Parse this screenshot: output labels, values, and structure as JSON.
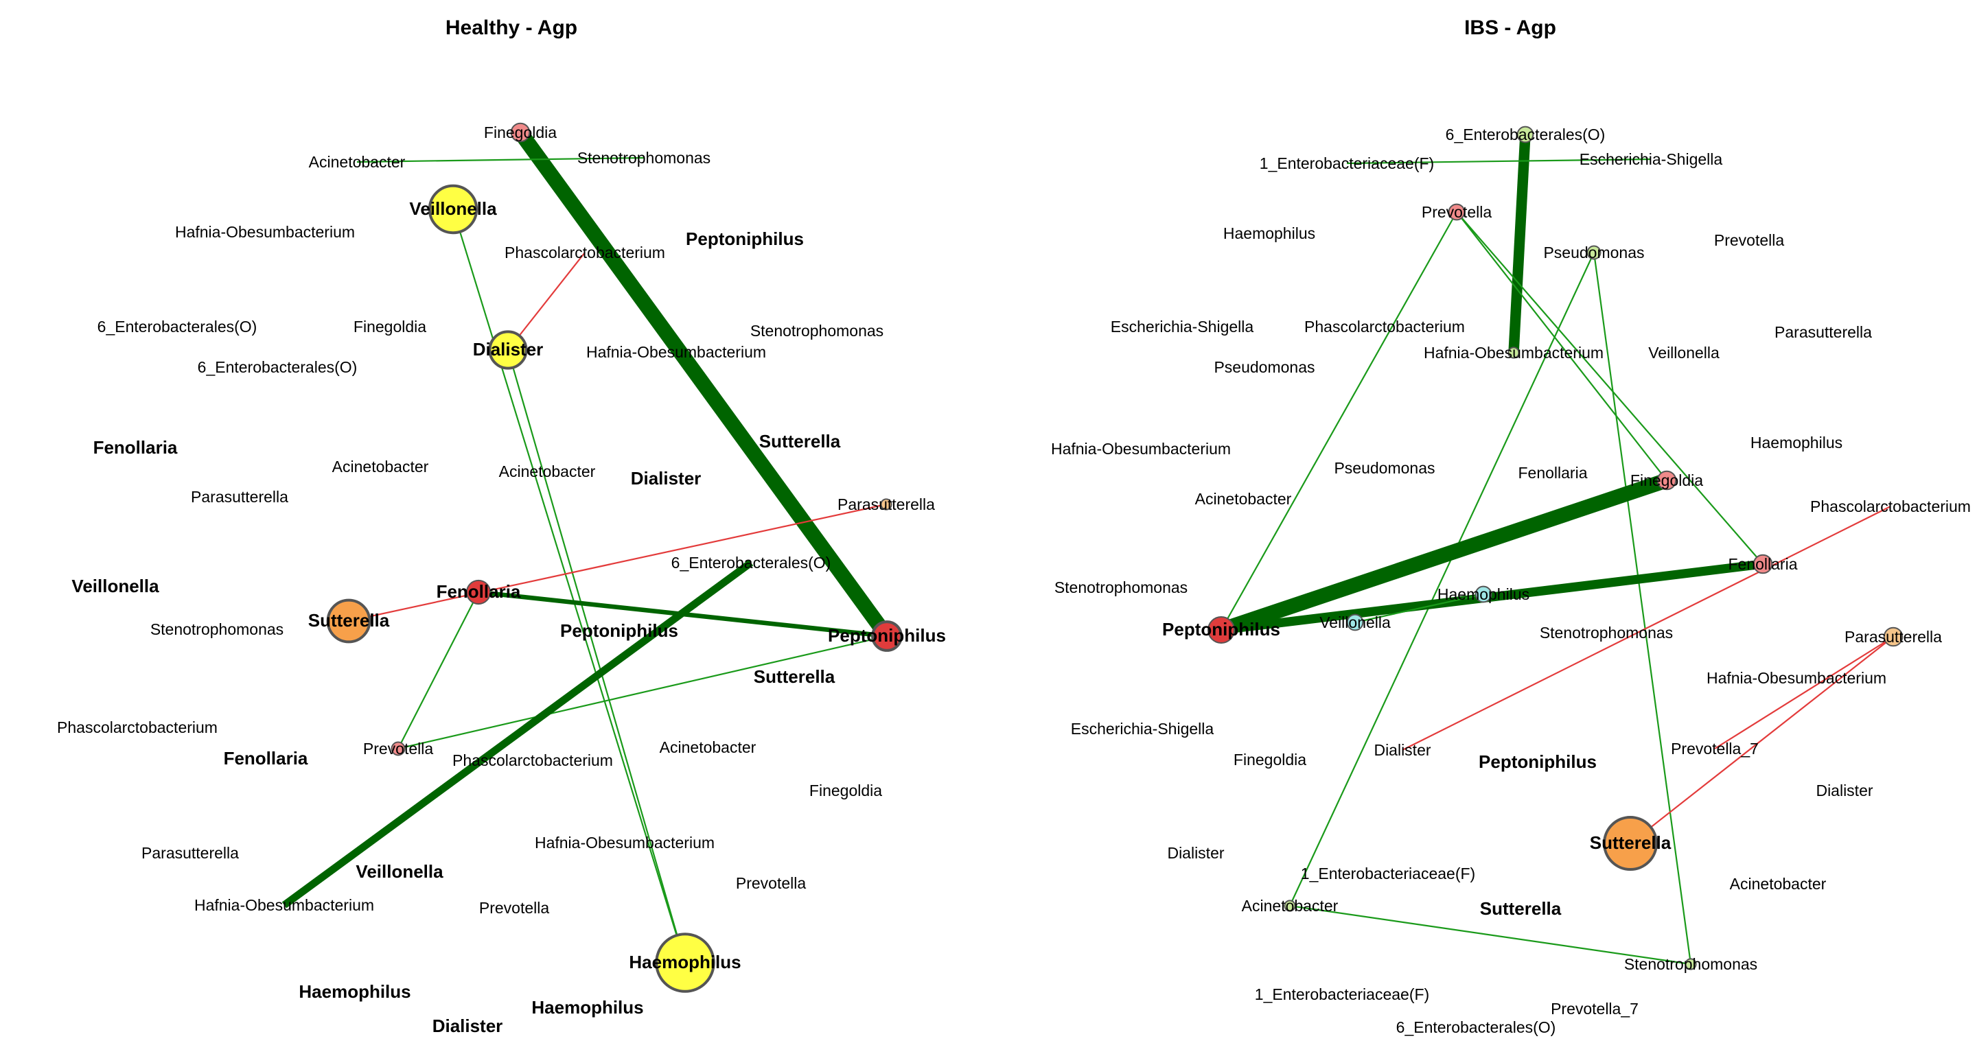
{
  "panels": [
    {
      "title": "Healthy - Agp",
      "edges": [
        {
          "from": "n_fine",
          "to": "n_pept",
          "weight": 10,
          "color": "#006400"
        },
        {
          "from": "n_acin1",
          "to": "n_steno1",
          "weight": 1,
          "color": "#1a9a1a"
        },
        {
          "from": "n_veil",
          "to": "n_haem",
          "weight": 1,
          "color": "#1a9a1a"
        },
        {
          "from": "n_dial",
          "to": "n_haem",
          "weight": 1,
          "color": "#1a9a1a"
        },
        {
          "from": "n_dial",
          "to": "n_phas1",
          "weight": 1,
          "color": "#e33b3b"
        },
        {
          "from": "n_fen",
          "to": "n_pept",
          "weight": 3,
          "color": "#006400"
        },
        {
          "from": "n_fen",
          "to": "n_prev",
          "weight": 1,
          "color": "#1a9a1a"
        },
        {
          "from": "n_sut",
          "to": "n_para",
          "weight": 1,
          "color": "#e33b3b"
        },
        {
          "from": "n_prev",
          "to": "n_pept",
          "weight": 1,
          "color": "#1a9a1a"
        },
        {
          "from": "n_ent",
          "to": "n_hafb",
          "weight": 5,
          "color": "#006400"
        }
      ],
      "nodes": [
        {
          "id": "n_fine",
          "label": "Finegoldia",
          "r": 7,
          "fill": "#f08a8a",
          "bold": false
        },
        {
          "id": "n_acin1",
          "label": "Acinetobacter",
          "r": 0,
          "fill": "none",
          "bold": false
        },
        {
          "id": "n_steno1",
          "label": "Stenotrophomonas",
          "r": 0,
          "fill": "none",
          "bold": false
        },
        {
          "id": "n_veil",
          "label": "Veillonella",
          "r": 18,
          "fill": "#ffff44",
          "bold": true
        },
        {
          "id": "n_haf1",
          "label": "Hafnia-Obesumbacterium",
          "r": 0,
          "fill": "none",
          "bold": false
        },
        {
          "id": "n_phas1",
          "label": "Phascolarctobacterium",
          "r": 0,
          "fill": "none",
          "bold": false
        },
        {
          "id": "n_pep2",
          "label": "Peptoniphilus",
          "r": 0,
          "fill": "none",
          "bold": true
        },
        {
          "id": "n_ent1",
          "label": "6_Enterobacterales(O)",
          "r": 0,
          "fill": "none",
          "bold": false
        },
        {
          "id": "n_fine2",
          "label": "Finegoldia",
          "r": 0,
          "fill": "none",
          "bold": false
        },
        {
          "id": "n_steno2",
          "label": "Stenotrophomonas",
          "r": 0,
          "fill": "none",
          "bold": false
        },
        {
          "id": "n_dial",
          "label": "Dialister",
          "r": 14,
          "fill": "#ffff44",
          "bold": true
        },
        {
          "id": "n_haf2",
          "label": "Hafnia-Obesumbacterium",
          "r": 0,
          "fill": "none",
          "bold": false
        },
        {
          "id": "n_ent2",
          "label": "6_Enterobacterales(O)",
          "r": 0,
          "fill": "none",
          "bold": false
        },
        {
          "id": "n_sut1",
          "label": "Sutterella",
          "r": 0,
          "fill": "none",
          "bold": true
        },
        {
          "id": "n_fen1",
          "label": "Fenollaria",
          "r": 0,
          "fill": "none",
          "bold": true
        },
        {
          "id": "n_acin2",
          "label": "Acinetobacter",
          "r": 0,
          "fill": "none",
          "bold": false
        },
        {
          "id": "n_acin3",
          "label": "Acinetobacter",
          "r": 0,
          "fill": "none",
          "bold": false
        },
        {
          "id": "n_dial2",
          "label": "Dialister",
          "r": 0,
          "fill": "none",
          "bold": true
        },
        {
          "id": "n_para1",
          "label": "Parasutterella",
          "r": 0,
          "fill": "none",
          "bold": false
        },
        {
          "id": "n_para",
          "label": "Parasutterella",
          "r": 4,
          "fill": "#f5c58a",
          "bold": false
        },
        {
          "id": "n_ent",
          "label": "6_Enterobacterales(O)",
          "r": 0,
          "fill": "none",
          "bold": false
        },
        {
          "id": "n_veil2",
          "label": "Veillonella",
          "r": 0,
          "fill": "none",
          "bold": true
        },
        {
          "id": "n_fen",
          "label": "Fenollaria",
          "r": 9,
          "fill": "#e03c3c",
          "bold": true
        },
        {
          "id": "n_sut",
          "label": "Sutterella",
          "r": 16,
          "fill": "#f7a04a",
          "bold": true
        },
        {
          "id": "n_steno3",
          "label": "Stenotrophomonas",
          "r": 0,
          "fill": "none",
          "bold": false
        },
        {
          "id": "n_pep3",
          "label": "Peptoniphilus",
          "r": 0,
          "fill": "none",
          "bold": true
        },
        {
          "id": "n_pept",
          "label": "Peptoniphilus",
          "r": 11,
          "fill": "#e03c3c",
          "bold": true
        },
        {
          "id": "n_sut2",
          "label": "Sutterella",
          "r": 0,
          "fill": "none",
          "bold": true
        },
        {
          "id": "n_phas2",
          "label": "Phascolarctobacterium",
          "r": 0,
          "fill": "none",
          "bold": false
        },
        {
          "id": "n_fen2",
          "label": "Fenollaria",
          "r": 0,
          "fill": "none",
          "bold": true
        },
        {
          "id": "n_prev",
          "label": "Prevotella",
          "r": 5,
          "fill": "#f08a8a",
          "bold": false
        },
        {
          "id": "n_phas3",
          "label": "Phascolarctobacterium",
          "r": 0,
          "fill": "none",
          "bold": false
        },
        {
          "id": "n_acin4",
          "label": "Acinetobacter",
          "r": 0,
          "fill": "none",
          "bold": false
        },
        {
          "id": "n_fine3",
          "label": "Finegoldia",
          "r": 0,
          "fill": "none",
          "bold": false
        },
        {
          "id": "n_para2",
          "label": "Parasutterella",
          "r": 0,
          "fill": "none",
          "bold": false
        },
        {
          "id": "n_haf3",
          "label": "Hafnia-Obesumbacterium",
          "r": 0,
          "fill": "none",
          "bold": false
        },
        {
          "id": "n_veil3",
          "label": "Veillonella",
          "r": 0,
          "fill": "none",
          "bold": true
        },
        {
          "id": "n_prev2",
          "label": "Prevotella",
          "r": 0,
          "fill": "none",
          "bold": false
        },
        {
          "id": "n_hafb",
          "label": "Hafnia-Obesumbacterium",
          "r": 0,
          "fill": "none",
          "bold": false
        },
        {
          "id": "n_prev3",
          "label": "Prevotella",
          "r": 0,
          "fill": "none",
          "bold": false
        },
        {
          "id": "n_haem",
          "label": "Haemophilus",
          "r": 22,
          "fill": "#ffff44",
          "bold": true
        },
        {
          "id": "n_haem2",
          "label": "Haemophilus",
          "r": 0,
          "fill": "none",
          "bold": true
        },
        {
          "id": "n_haem3",
          "label": "Haemophilus",
          "r": 0,
          "fill": "none",
          "bold": true
        },
        {
          "id": "n_dial3",
          "label": "Dialister",
          "r": 0,
          "fill": "none",
          "bold": true
        }
      ]
    },
    {
      "title": "IBS - Agp",
      "edges": [
        {
          "from": "i_ent",
          "to": "i_haf",
          "weight": 7,
          "color": "#006400"
        },
        {
          "from": "i_ent1",
          "to": "i_esch",
          "weight": 1,
          "color": "#1a9a1a"
        },
        {
          "from": "i_prev",
          "to": "i_pept",
          "weight": 1,
          "color": "#1a9a1a"
        },
        {
          "from": "i_prev",
          "to": "i_fine",
          "weight": 1,
          "color": "#1a9a1a"
        },
        {
          "from": "i_prev",
          "to": "i_fen",
          "weight": 1,
          "color": "#1a9a1a"
        },
        {
          "from": "i_pseu",
          "to": "i_acin",
          "weight": 1,
          "color": "#1a9a1a"
        },
        {
          "from": "i_pseu",
          "to": "i_steno",
          "weight": 1,
          "color": "#1a9a1a"
        },
        {
          "from": "i_pept",
          "to": "i_fine",
          "weight": 10,
          "color": "#006400"
        },
        {
          "from": "i_pept",
          "to": "i_fen",
          "weight": 6,
          "color": "#006400"
        },
        {
          "from": "i_veil",
          "to": "i_haem",
          "weight": 1,
          "color": "#1a9a1a"
        },
        {
          "from": "i_dial",
          "to": "i_phas",
          "weight": 1,
          "color": "#e33b3b"
        },
        {
          "from": "i_prev7",
          "to": "i_para",
          "weight": 1,
          "color": "#e33b3b"
        },
        {
          "from": "i_sut",
          "to": "i_para",
          "weight": 1,
          "color": "#e33b3b"
        },
        {
          "from": "i_acin",
          "to": "i_steno",
          "weight": 1,
          "color": "#1a9a1a"
        }
      ],
      "nodes": [
        {
          "id": "i_ent",
          "label": "6_Enterobacterales(O)",
          "r": 6,
          "fill": "#c8e89a",
          "bold": false
        },
        {
          "id": "i_ent1",
          "label": "1_Enterobacteriaceae(F)",
          "r": 0,
          "fill": "none",
          "bold": false
        },
        {
          "id": "i_esch",
          "label": "Escherichia-Shigella",
          "r": 0,
          "fill": "none",
          "bold": false
        },
        {
          "id": "i_prev",
          "label": "Prevotella",
          "r": 6,
          "fill": "#f08a8a",
          "bold": false
        },
        {
          "id": "i_haem1",
          "label": "Haemophilus",
          "r": 0,
          "fill": "none",
          "bold": false
        },
        {
          "id": "i_pseu",
          "label": "Pseudomonas",
          "r": 5,
          "fill": "#c8e89a",
          "bold": false
        },
        {
          "id": "i_prev2",
          "label": "Prevotella",
          "r": 0,
          "fill": "none",
          "bold": false
        },
        {
          "id": "i_esch2",
          "label": "Escherichia-Shigella",
          "r": 0,
          "fill": "none",
          "bold": false
        },
        {
          "id": "i_phas2",
          "label": "Phascolarctobacterium",
          "r": 0,
          "fill": "none",
          "bold": false
        },
        {
          "id": "i_haf",
          "label": "Hafnia-Obesumbacterium",
          "r": 4,
          "fill": "#c8e89a",
          "bold": false
        },
        {
          "id": "i_veil2",
          "label": "Veillonella",
          "r": 0,
          "fill": "none",
          "bold": false
        },
        {
          "id": "i_para2",
          "label": "Parasutterella",
          "r": 0,
          "fill": "none",
          "bold": false
        },
        {
          "id": "i_pseu2",
          "label": "Pseudomonas",
          "r": 0,
          "fill": "none",
          "bold": false
        },
        {
          "id": "i_haf2",
          "label": "Hafnia-Obesumbacterium",
          "r": 0,
          "fill": "none",
          "bold": false
        },
        {
          "id": "i_haem2",
          "label": "Haemophilus",
          "r": 0,
          "fill": "none",
          "bold": false
        },
        {
          "id": "i_pseu3",
          "label": "Pseudomonas",
          "r": 0,
          "fill": "none",
          "bold": false
        },
        {
          "id": "i_fen2",
          "label": "Fenollaria",
          "r": 0,
          "fill": "none",
          "bold": false
        },
        {
          "id": "i_fine",
          "label": "Finegoldia",
          "r": 7,
          "fill": "#f08a8a",
          "bold": false
        },
        {
          "id": "i_acin2",
          "label": "Acinetobacter",
          "r": 0,
          "fill": "none",
          "bold": false
        },
        {
          "id": "i_phas",
          "label": "Phascolarctobacterium",
          "r": 0,
          "fill": "none",
          "bold": false
        },
        {
          "id": "i_fen",
          "label": "Fenollaria",
          "r": 7,
          "fill": "#f08a8a",
          "bold": false
        },
        {
          "id": "i_steno2",
          "label": "Stenotrophomonas",
          "r": 0,
          "fill": "none",
          "bold": false
        },
        {
          "id": "i_haem",
          "label": "Haemophilus",
          "r": 6,
          "fill": "#9fe6e6",
          "bold": false
        },
        {
          "id": "i_pept",
          "label": "Peptoniphilus",
          "r": 10,
          "fill": "#e03c3c",
          "bold": true
        },
        {
          "id": "i_veil",
          "label": "Veillonella",
          "r": 6,
          "fill": "#9fe6e6",
          "bold": false
        },
        {
          "id": "i_steno3",
          "label": "Stenotrophomonas",
          "r": 0,
          "fill": "none",
          "bold": false
        },
        {
          "id": "i_para",
          "label": "Parasutterella",
          "r": 7,
          "fill": "#f5c58a",
          "bold": false
        },
        {
          "id": "i_haf3",
          "label": "Hafnia-Obesumbacterium",
          "r": 0,
          "fill": "none",
          "bold": false
        },
        {
          "id": "i_esch3",
          "label": "Escherichia-Shigella",
          "r": 0,
          "fill": "none",
          "bold": false
        },
        {
          "id": "i_dial",
          "label": "Dialister",
          "r": 0,
          "fill": "none",
          "bold": false
        },
        {
          "id": "i_prev7",
          "label": "Prevotella_7",
          "r": 0,
          "fill": "none",
          "bold": false
        },
        {
          "id": "i_fine2",
          "label": "Finegoldia",
          "r": 0,
          "fill": "none",
          "bold": false
        },
        {
          "id": "i_pep2",
          "label": "Peptoniphilus",
          "r": 0,
          "fill": "none",
          "bold": true
        },
        {
          "id": "i_dial2",
          "label": "Dialister",
          "r": 0,
          "fill": "none",
          "bold": false
        },
        {
          "id": "i_sut",
          "label": "Sutterella",
          "r": 20,
          "fill": "#f7a04a",
          "bold": true
        },
        {
          "id": "i_dial3",
          "label": "Dialister",
          "r": 0,
          "fill": "none",
          "bold": false
        },
        {
          "id": "i_ent1b",
          "label": "1_Enterobacteriaceae(F)",
          "r": 0,
          "fill": "none",
          "bold": false
        },
        {
          "id": "i_acin",
          "label": "Acinetobacter",
          "r": 4,
          "fill": "#c8e89a",
          "bold": false
        },
        {
          "id": "i_acin3",
          "label": "Acinetobacter",
          "r": 0,
          "fill": "none",
          "bold": false
        },
        {
          "id": "i_sut2",
          "label": "Sutterella",
          "r": 0,
          "fill": "none",
          "bold": true
        },
        {
          "id": "i_steno",
          "label": "Stenotrophomonas",
          "r": 4,
          "fill": "#c8e89a",
          "bold": false
        },
        {
          "id": "i_ent1c",
          "label": "1_Enterobacteriaceae(F)",
          "r": 0,
          "fill": "none",
          "bold": false
        },
        {
          "id": "i_prev7b",
          "label": "Prevotella_7",
          "r": 0,
          "fill": "none",
          "bold": false
        },
        {
          "id": "i_ent6b",
          "label": "6_Enterobacterales(O)",
          "r": 0,
          "fill": "none",
          "bold": false
        }
      ]
    }
  ]
}
